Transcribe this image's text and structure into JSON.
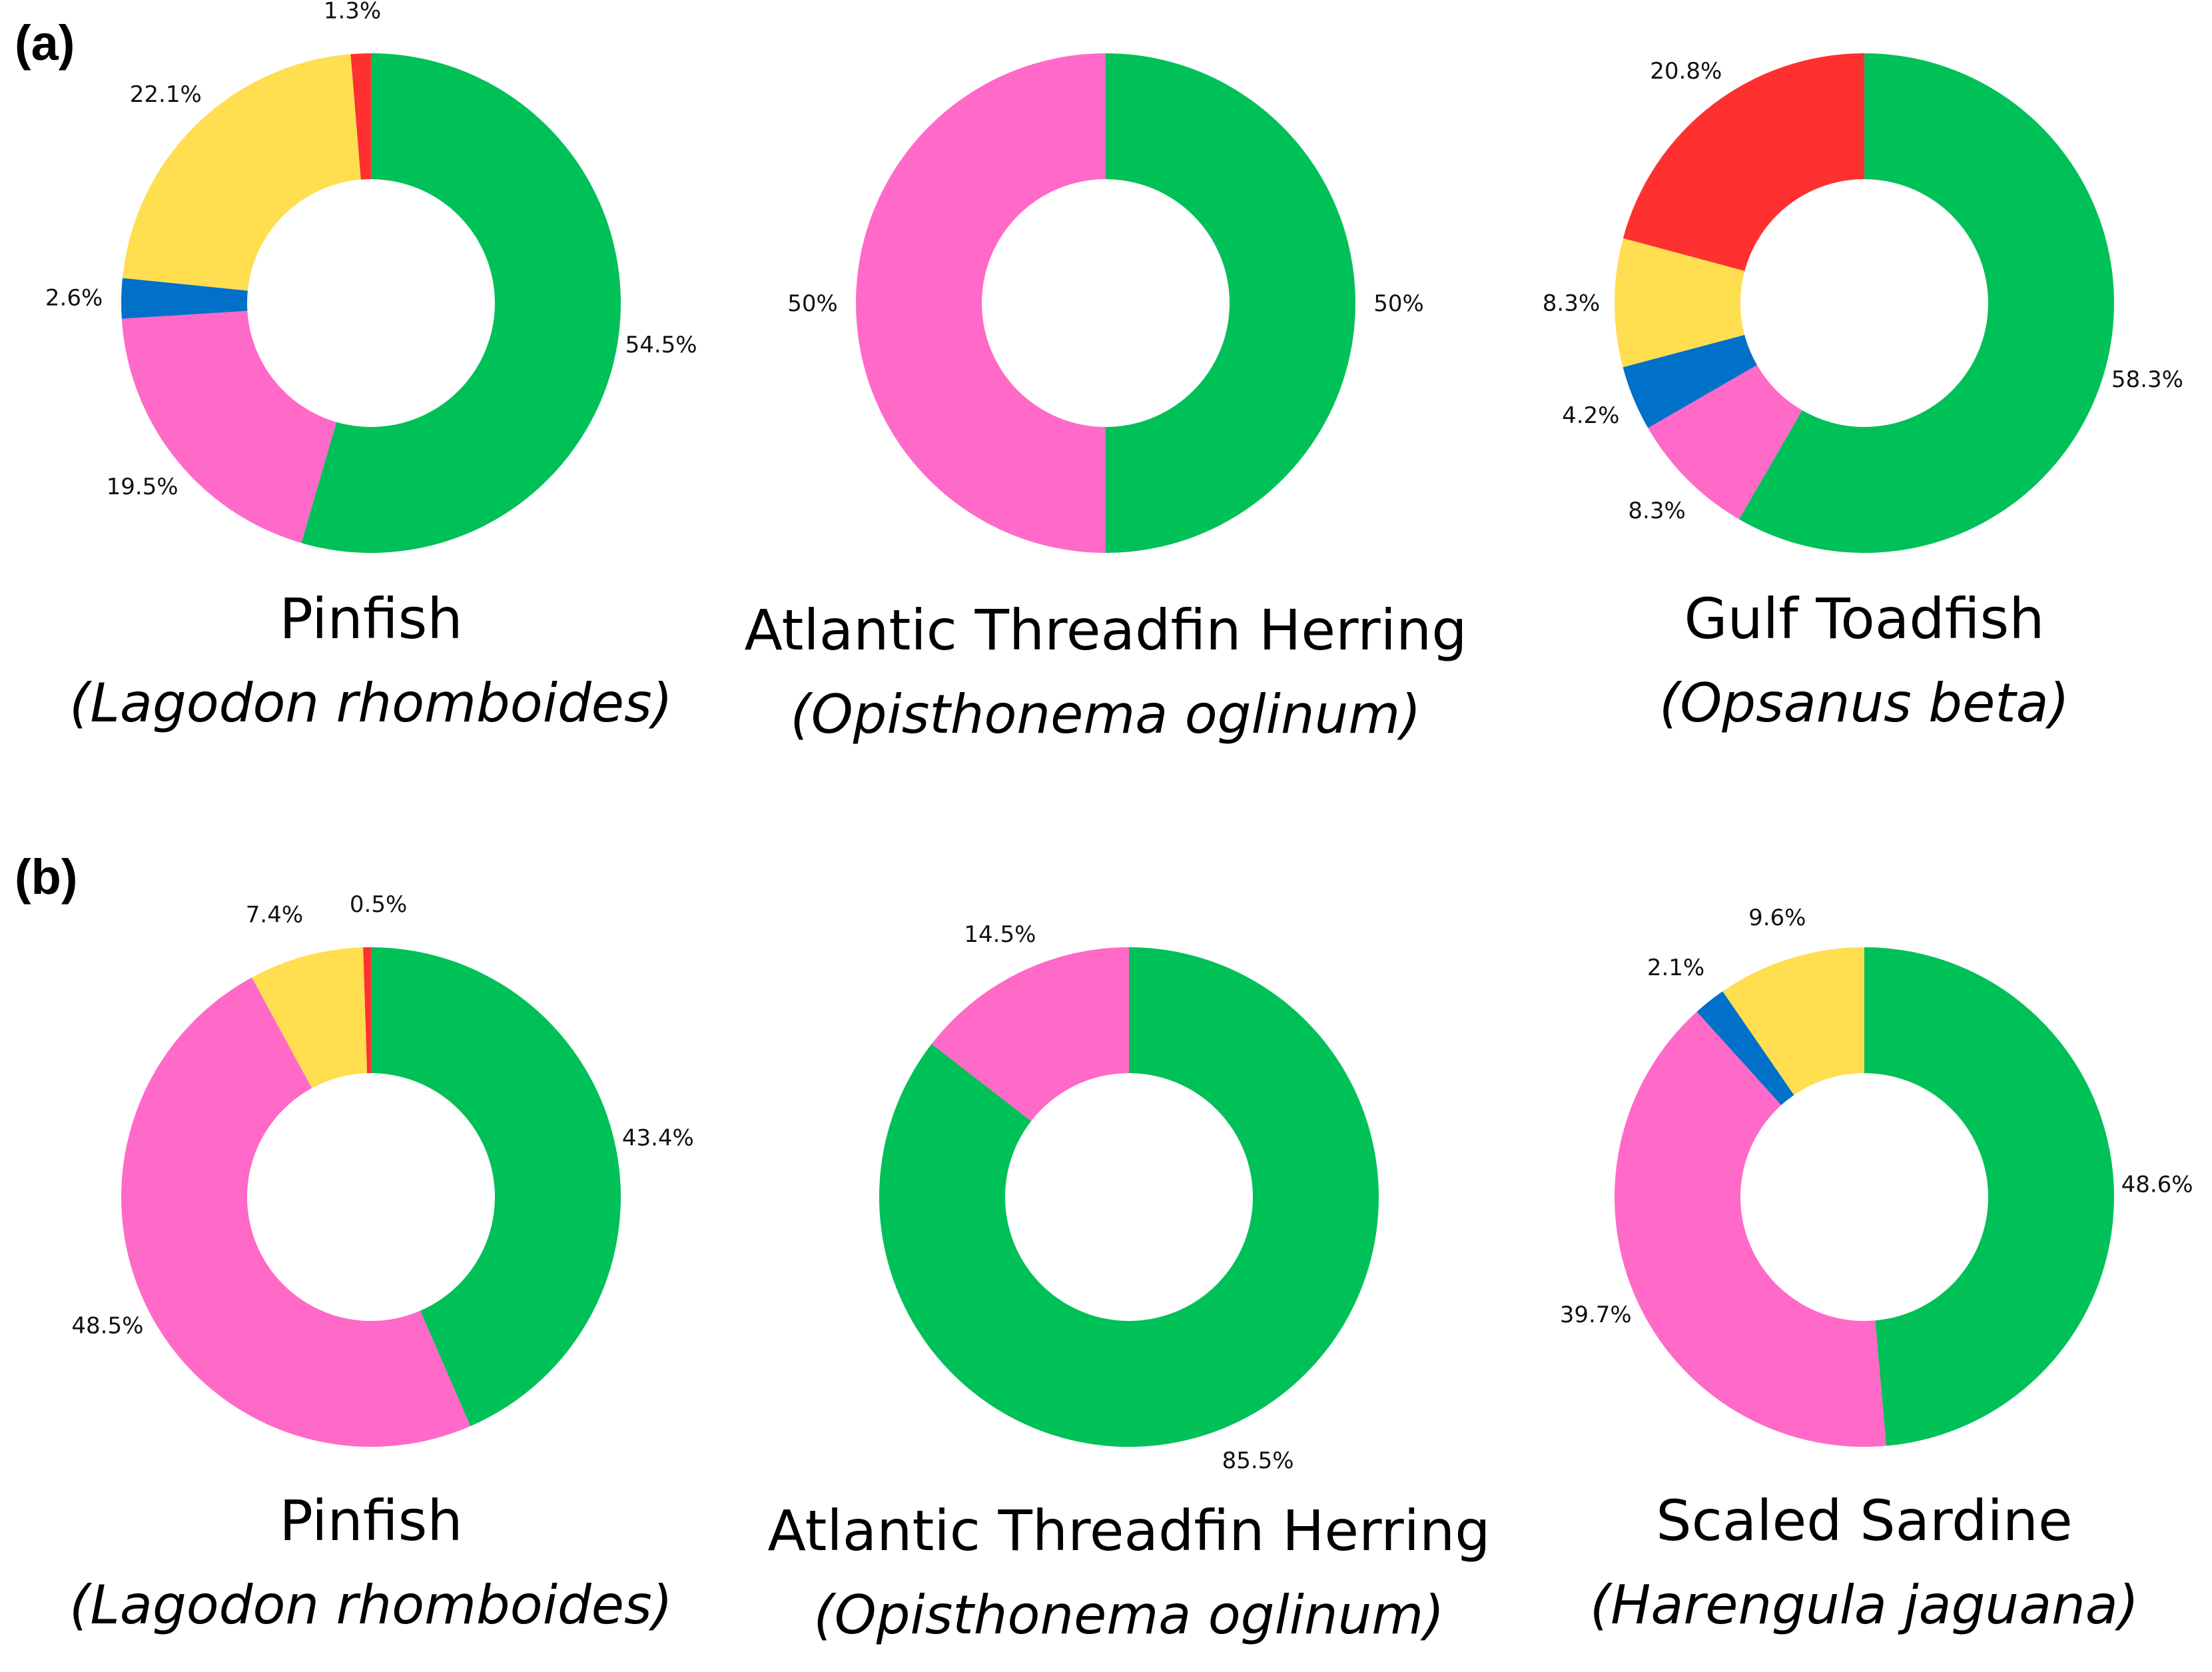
{
  "colors": {
    "green": "#00C058",
    "pink": "#FF69C8",
    "blue": "#0070C8",
    "yellow": "#FFDE50",
    "red": "#FF3030"
  },
  "chart_data": [
    {
      "type": "pie",
      "panel": "(a)",
      "common_name": "Pinfish",
      "scientific_name": "(Lagodon rhomboides)",
      "slices": [
        {
          "color": "green",
          "value": 54.5,
          "label": "54.5%"
        },
        {
          "color": "pink",
          "value": 19.5,
          "label": "19.5%"
        },
        {
          "color": "blue",
          "value": 2.6,
          "label": "2.6%"
        },
        {
          "color": "yellow",
          "value": 22.1,
          "label": "22.1%"
        },
        {
          "color": "red",
          "value": 1.3,
          "label": "1.3%"
        }
      ]
    },
    {
      "type": "pie",
      "panel": "(a)",
      "common_name": "Atlantic Threadfin Herring",
      "scientific_name": "(Opisthonema oglinum)",
      "slices": [
        {
          "color": "green",
          "value": 50,
          "label": "50%"
        },
        {
          "color": "pink",
          "value": 50,
          "label": "50%"
        }
      ]
    },
    {
      "type": "pie",
      "panel": "(a)",
      "common_name": "Gulf Toadfish",
      "scientific_name": "(Opsanus beta)",
      "slices": [
        {
          "color": "green",
          "value": 58.3,
          "label": "58.3%"
        },
        {
          "color": "pink",
          "value": 8.3,
          "label": "8.3%"
        },
        {
          "color": "blue",
          "value": 4.2,
          "label": "4.2%"
        },
        {
          "color": "yellow",
          "value": 8.3,
          "label": "8.3%"
        },
        {
          "color": "red",
          "value": 20.8,
          "label": "20.8%"
        }
      ]
    },
    {
      "type": "pie",
      "panel": "(b)",
      "common_name": "Pinfish",
      "scientific_name": "(Lagodon rhomboides)",
      "slices": [
        {
          "color": "green",
          "value": 43.4,
          "label": "43.4%"
        },
        {
          "color": "pink",
          "value": 48.5,
          "label": "48.5%"
        },
        {
          "color": "yellow",
          "value": 7.4,
          "label": "7.4%"
        },
        {
          "color": "red",
          "value": 0.5,
          "label": "0.5%"
        }
      ]
    },
    {
      "type": "pie",
      "panel": "(b)",
      "common_name": "Atlantic Threadfin Herring",
      "scientific_name": "(Opisthonema oglinum)",
      "slices": [
        {
          "color": "green",
          "value": 85.5,
          "label": "85.5%"
        },
        {
          "color": "pink",
          "value": 14.5,
          "label": "14.5%"
        }
      ]
    },
    {
      "type": "pie",
      "panel": "(b)",
      "common_name": "Scaled Sardine",
      "scientific_name": "(Harengula jaguana)",
      "slices": [
        {
          "color": "green",
          "value": 48.6,
          "label": "48.6%"
        },
        {
          "color": "pink",
          "value": 39.7,
          "label": "39.7%"
        },
        {
          "color": "blue",
          "value": 2.1,
          "label": "2.1%"
        },
        {
          "color": "yellow",
          "value": 9.6,
          "label": "9.6%"
        }
      ]
    }
  ]
}
